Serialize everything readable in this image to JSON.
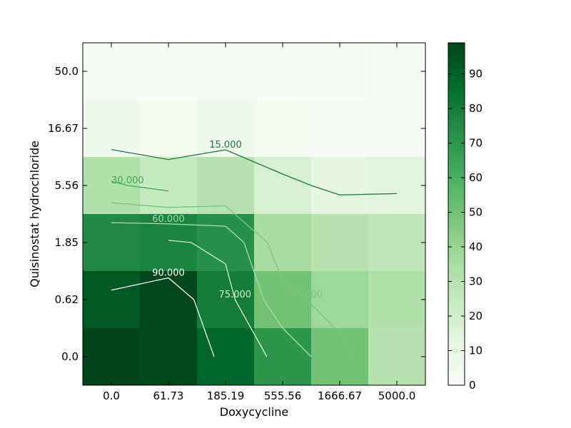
{
  "chart_data": {
    "type": "heatmap",
    "title": "",
    "xlabel": "Doxycycline",
    "ylabel": "Quisinostat hydrochloride",
    "x_categories": [
      "0.0",
      "61.73",
      "185.19",
      "555.56",
      "1666.67",
      "5000.0"
    ],
    "y_categories": [
      "0.0",
      "0.62",
      "1.85",
      "5.56",
      "16.67",
      "50.0"
    ],
    "values": [
      [
        99,
        98,
        88,
        70,
        50,
        30
      ],
      [
        93,
        98,
        80,
        50,
        38,
        32
      ],
      [
        75,
        77,
        72,
        35,
        30,
        27
      ],
      [
        32,
        25,
        30,
        18,
        12,
        13
      ],
      [
        5,
        3,
        6,
        3,
        2,
        2
      ],
      [
        1,
        0,
        1,
        1,
        0,
        2
      ]
    ],
    "colorbar": {
      "min": 0,
      "max": 99,
      "ticks": [
        "0",
        "10",
        "20",
        "30",
        "40",
        "50",
        "60",
        "70",
        "80",
        "90"
      ]
    },
    "contour_levels": [
      "15.000",
      "30.000",
      "45.000",
      "60.000",
      "75.000",
      "90.000"
    ],
    "colormap": [
      "#f7fcf5",
      "#e5f5e0",
      "#c7e9c0",
      "#a1d99b",
      "#74c476",
      "#41ab5d",
      "#238b45",
      "#006d2c",
      "#00441b"
    ],
    "grid": false
  }
}
